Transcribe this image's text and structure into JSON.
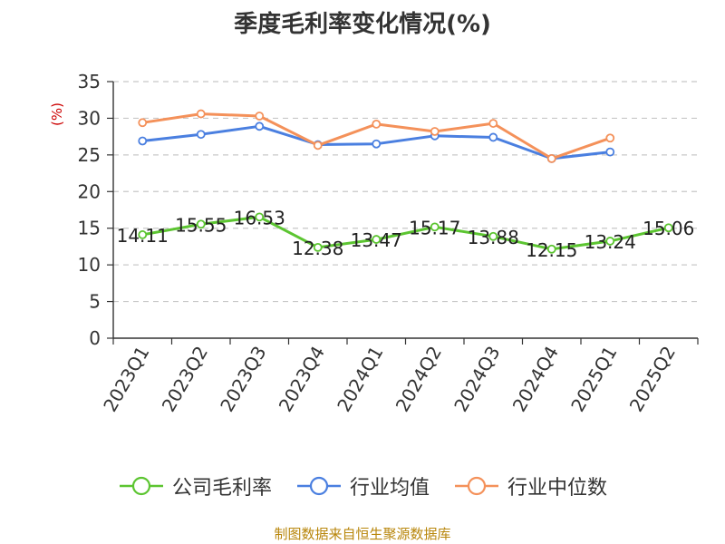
{
  "chart_data": {
    "type": "line",
    "title": "季度毛利率变化情况(%)",
    "ylabel": "(%)",
    "xlabel": "",
    "ylim": [
      0,
      35
    ],
    "yticks": [
      0,
      5,
      10,
      15,
      20,
      25,
      30,
      35
    ],
    "grid": true,
    "legend_position": "bottom",
    "categories": [
      "2023Q1",
      "2023Q2",
      "2023Q3",
      "2023Q4",
      "2024Q1",
      "2024Q2",
      "2024Q3",
      "2024Q4",
      "2025Q1",
      "2025Q2"
    ],
    "series": [
      {
        "name": "公司毛利率",
        "color": "#5cc531",
        "show_labels": true,
        "values": [
          14.11,
          15.55,
          16.53,
          12.38,
          13.47,
          15.17,
          13.88,
          12.15,
          13.24,
          15.06
        ]
      },
      {
        "name": "行业均值",
        "color": "#4a7fe0",
        "show_labels": false,
        "values": [
          26.9,
          27.8,
          28.9,
          26.4,
          26.5,
          27.6,
          27.4,
          24.5,
          25.4,
          null
        ]
      },
      {
        "name": "行业中位数",
        "color": "#f4915a",
        "show_labels": false,
        "values": [
          29.4,
          30.6,
          30.3,
          26.3,
          29.2,
          28.2,
          29.3,
          24.5,
          27.3,
          null
        ]
      }
    ]
  },
  "source": "制图数据来自恒生聚源数据库"
}
